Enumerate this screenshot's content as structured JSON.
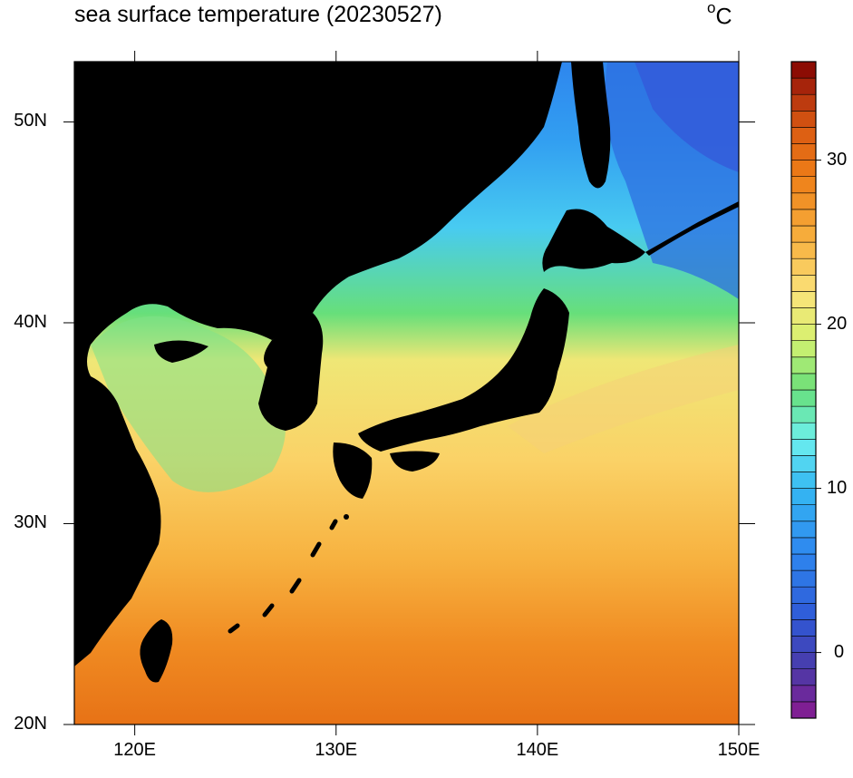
{
  "title": "sea surface temperature (20230527)",
  "unit": {
    "degree": "o",
    "letter": "C"
  },
  "map": {
    "lon_range": [
      117,
      150
    ],
    "lat_range": [
      20,
      53
    ],
    "x_ticks": [
      {
        "value": 120,
        "label": "120E"
      },
      {
        "value": 130,
        "label": "130E"
      },
      {
        "value": 140,
        "label": "140E"
      },
      {
        "value": 150,
        "label": "150E"
      }
    ],
    "y_ticks": [
      {
        "value": 20,
        "label": "20N"
      },
      {
        "value": 30,
        "label": "30N"
      },
      {
        "value": 40,
        "label": "40N"
      },
      {
        "value": 50,
        "label": "50N"
      }
    ],
    "land_color": "#000000"
  },
  "colorbar": {
    "min": -4,
    "max": 36,
    "step": 1,
    "tick_labels": [
      {
        "value": 0,
        "label": "0"
      },
      {
        "value": 10,
        "label": "10"
      },
      {
        "value": 20,
        "label": "20"
      },
      {
        "value": 30,
        "label": "30"
      }
    ],
    "color_stops": [
      {
        "t": -4,
        "color": "#8a1a8f"
      },
      {
        "t": -1,
        "color": "#4a3aa8"
      },
      {
        "t": 2,
        "color": "#2f58d6"
      },
      {
        "t": 6,
        "color": "#2e86ee"
      },
      {
        "t": 10,
        "color": "#35b8f3"
      },
      {
        "t": 13,
        "color": "#6df0ee"
      },
      {
        "t": 16,
        "color": "#67df7a"
      },
      {
        "t": 19,
        "color": "#d6f26f"
      },
      {
        "t": 22,
        "color": "#fbe27a"
      },
      {
        "t": 25,
        "color": "#f7b240"
      },
      {
        "t": 29,
        "color": "#ee7e18"
      },
      {
        "t": 32,
        "color": "#d95a12"
      },
      {
        "t": 34,
        "color": "#b3300e"
      },
      {
        "t": 36,
        "color": "#7f0000"
      }
    ]
  }
}
